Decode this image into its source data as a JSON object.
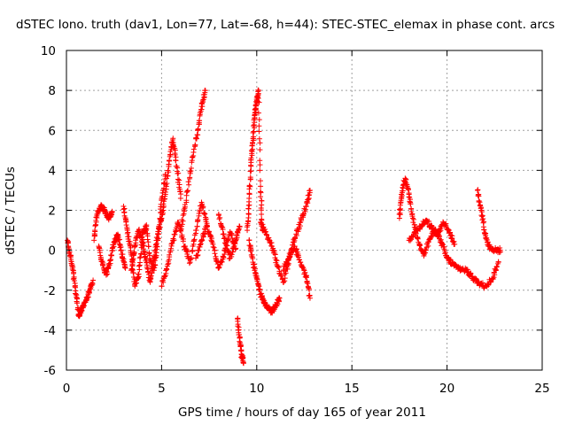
{
  "chart_data": {
    "type": "scatter",
    "title": "dSTEC Iono. truth (dav1, Lon=77, Lat=-68, h=44): STEC-STEC_elemax in phase cont. arcs",
    "xlabel": "GPS time / hours of day 165 of year 2011",
    "ylabel": "dSTEC  / TECUs",
    "xlim": [
      0,
      25
    ],
    "ylim": [
      -6,
      10
    ],
    "xticks": [
      "0",
      "5",
      "10",
      "15",
      "20",
      "25"
    ],
    "yticks": [
      "-6",
      "-4",
      "-2",
      "0",
      "2",
      "4",
      "6",
      "8",
      "10"
    ],
    "grid": true,
    "marker": "+",
    "color": "#ff0000",
    "segments": [
      {
        "x": [
          0.05,
          0.2,
          0.35,
          0.5,
          0.65,
          0.8,
          1.0,
          1.2,
          1.4
        ],
        "y": [
          0.5,
          -0.3,
          -1.0,
          -2.2,
          -3.3,
          -3.0,
          -2.6,
          -2.1,
          -1.5
        ]
      },
      {
        "x": [
          1.45,
          1.6,
          1.8,
          2.0,
          2.2,
          2.4
        ],
        "y": [
          0.5,
          1.8,
          2.2,
          2.0,
          1.6,
          1.9
        ]
      },
      {
        "x": [
          1.7,
          1.9,
          2.1,
          2.3,
          2.5,
          2.7,
          2.9,
          3.1
        ],
        "y": [
          0.2,
          -0.7,
          -1.2,
          -0.5,
          0.4,
          0.8,
          -0.2,
          -0.9
        ]
      },
      {
        "x": [
          3.0,
          3.2,
          3.4,
          3.6,
          3.8,
          4.0,
          4.2,
          4.4,
          4.6,
          4.8,
          5.0,
          5.2
        ],
        "y": [
          2.2,
          1.0,
          -0.2,
          -1.8,
          -1.2,
          0.8,
          1.2,
          -0.5,
          -1.0,
          0.5,
          2.5,
          3.8
        ]
      },
      {
        "x": [
          3.4,
          3.6,
          3.8,
          4.0,
          4.2,
          4.4,
          4.6,
          4.8,
          5.0,
          5.2,
          5.4,
          5.6,
          5.8,
          6.0
        ],
        "y": [
          -1.0,
          0.2,
          1.0,
          0.4,
          -0.6,
          -1.6,
          -0.4,
          0.8,
          1.6,
          2.8,
          4.5,
          5.6,
          4.2,
          2.6
        ]
      },
      {
        "x": [
          5.0,
          5.3,
          5.6,
          5.9,
          6.2,
          6.5,
          6.8,
          7.1,
          7.4
        ],
        "y": [
          -1.8,
          -0.8,
          0.5,
          1.4,
          0.2,
          -0.6,
          1.0,
          2.4,
          1.2
        ]
      },
      {
        "x": [
          6.0,
          6.3,
          6.6,
          6.9,
          7.1,
          7.3
        ],
        "y": [
          1.0,
          2.5,
          4.5,
          6.0,
          7.2,
          8.0
        ]
      },
      {
        "x": [
          6.8,
          7.1,
          7.4,
          7.7,
          8.0,
          8.3,
          8.6,
          8.9
        ],
        "y": [
          -0.4,
          0.5,
          1.2,
          0.3,
          -0.9,
          -0.2,
          0.9,
          0.1
        ]
      },
      {
        "x": [
          8.0,
          8.3,
          8.6,
          8.9,
          9.1
        ],
        "y": [
          1.8,
          0.6,
          -0.4,
          0.5,
          1.2
        ]
      },
      {
        "x": [
          9.0,
          9.1,
          9.2,
          9.3
        ],
        "y": [
          -3.4,
          -4.4,
          -5.2,
          -5.6
        ]
      },
      {
        "x": [
          9.5,
          9.6,
          9.7,
          9.8,
          9.9,
          10.0,
          10.1,
          10.2,
          10.3
        ],
        "y": [
          1.0,
          2.6,
          4.4,
          5.6,
          6.8,
          7.4,
          8.0,
          3.2,
          1.0
        ]
      },
      {
        "x": [
          9.6,
          9.8,
          10.0,
          10.2,
          10.4,
          10.6,
          10.8,
          11.0,
          11.2
        ],
        "y": [
          0.5,
          -0.6,
          -1.4,
          -2.2,
          -2.6,
          -2.9,
          -3.1,
          -2.8,
          -2.4
        ]
      },
      {
        "x": [
          10.2,
          10.5,
          10.8,
          11.1,
          11.4,
          11.7,
          12.0,
          12.3,
          12.6,
          12.8
        ],
        "y": [
          1.4,
          0.8,
          0.2,
          -0.8,
          -1.6,
          -0.4,
          0.6,
          1.4,
          2.2,
          3.0
        ]
      },
      {
        "x": [
          11.4,
          11.7,
          12.0,
          12.3,
          12.6,
          12.8
        ],
        "y": [
          -1.0,
          -0.3,
          0.2,
          -0.6,
          -1.3,
          -2.4
        ]
      },
      {
        "x": [
          17.5,
          17.6,
          17.8,
          18.0,
          18.2,
          18.5,
          18.8,
          19.1,
          19.4,
          19.7,
          20.0,
          20.3,
          20.6,
          21.0,
          21.3,
          21.6,
          22.0,
          22.4,
          22.7
        ],
        "y": [
          1.6,
          2.8,
          3.6,
          2.8,
          1.6,
          0.4,
          -0.2,
          0.6,
          1.0,
          0.4,
          -0.4,
          -0.7,
          -0.9,
          -1.0,
          -1.3,
          -1.6,
          -1.8,
          -1.4,
          -0.6
        ]
      },
      {
        "x": [
          18.0,
          18.3,
          18.6,
          18.9,
          19.2,
          19.5,
          19.8,
          20.1,
          20.4
        ],
        "y": [
          0.5,
          0.9,
          1.2,
          1.5,
          1.1,
          0.8,
          1.4,
          1.0,
          0.3
        ]
      },
      {
        "x": [
          21.6,
          21.8,
          22.0,
          22.2,
          22.5,
          22.8
        ],
        "y": [
          3.0,
          2.0,
          0.8,
          0.2,
          0.0,
          0.0
        ]
      }
    ]
  }
}
